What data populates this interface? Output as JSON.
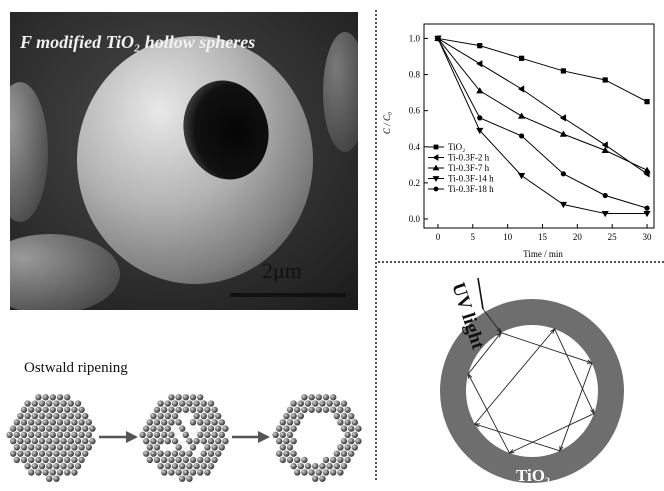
{
  "sem_image": {
    "title": "F modified TiO₂ hollow spheres",
    "scale_label": "2μm"
  },
  "ostwald": {
    "label": "Ostwald ripening"
  },
  "uv_diagram": {
    "light_label": "UV light",
    "shell_label": "TiO₂",
    "shell_color": "#6e6e6e"
  },
  "chart_data": {
    "type": "line",
    "xlabel": "Time / min",
    "ylabel": "C / C₀",
    "xlim": [
      -2,
      31
    ],
    "ylim": [
      -0.05,
      1.08
    ],
    "x_ticks": [
      0,
      5,
      10,
      15,
      20,
      25,
      30
    ],
    "y_ticks": [
      0.0,
      0.2,
      0.4,
      0.6,
      0.8,
      1.0
    ],
    "legend_position": "bottom-left",
    "series": [
      {
        "name": "TiO₂",
        "marker": "square",
        "x": [
          0,
          6,
          12,
          18,
          24,
          30
        ],
        "y": [
          1.0,
          0.96,
          0.89,
          0.82,
          0.77,
          0.65
        ]
      },
      {
        "name": "Ti-0.3F-2 h",
        "marker": "triangle-left",
        "x": [
          0,
          6,
          12,
          18,
          24,
          30
        ],
        "y": [
          1.0,
          0.86,
          0.72,
          0.56,
          0.41,
          0.25
        ]
      },
      {
        "name": "Ti-0.3F-7 h",
        "marker": "triangle-up",
        "x": [
          0,
          6,
          12,
          18,
          24,
          30
        ],
        "y": [
          1.0,
          0.71,
          0.57,
          0.47,
          0.38,
          0.27
        ]
      },
      {
        "name": "Ti-0.3F-14 h",
        "marker": "triangle-down",
        "x": [
          0,
          6,
          12,
          18,
          24,
          30
        ],
        "y": [
          1.0,
          0.49,
          0.24,
          0.08,
          0.03,
          0.03
        ]
      },
      {
        "name": "Ti-0.3F-18 h",
        "marker": "circle",
        "x": [
          0,
          6,
          12,
          18,
          24,
          30
        ],
        "y": [
          1.0,
          0.56,
          0.46,
          0.25,
          0.13,
          0.06
        ]
      }
    ]
  }
}
